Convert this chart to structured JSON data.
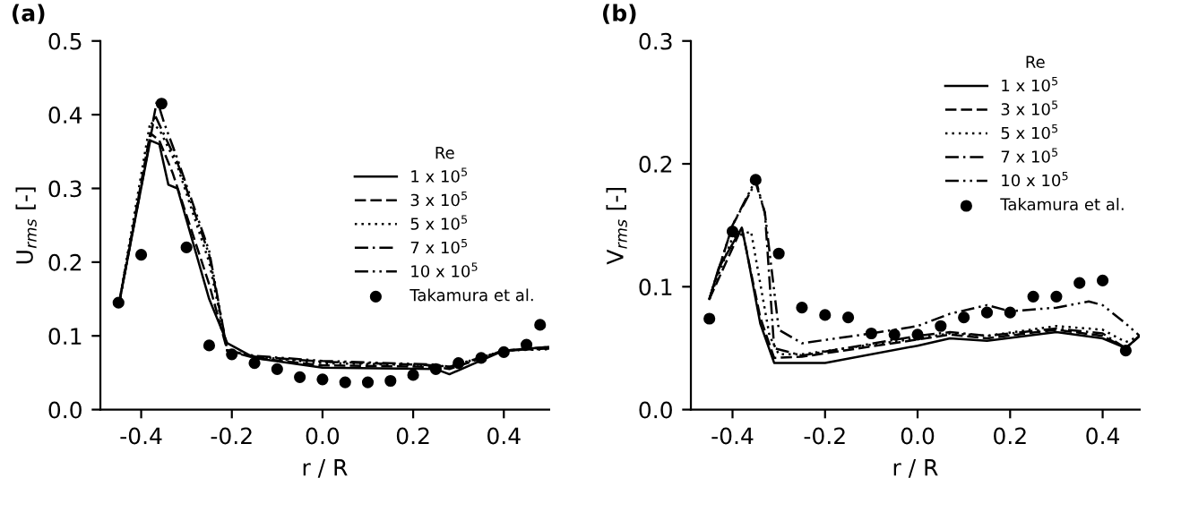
{
  "chart_data": [
    {
      "type": "line",
      "title": "(a)",
      "xlabel": "r / R",
      "ylabel": "U$_{rms}$ [-]",
      "legend_title": "Re",
      "legend": "right",
      "grid": false,
      "xlim": [
        -0.49,
        0.5
      ],
      "xticks": [
        -0.4,
        -0.2,
        {
          "value": 0,
          "label": "0.0"
        },
        0.2,
        0.4
      ],
      "ylim": [
        0,
        0.5
      ],
      "yticks": [
        {
          "value": 0,
          "label": "0.0"
        },
        0.1,
        0.2,
        0.3,
        0.4,
        0.5
      ],
      "series": [
        {
          "name": "1 x 10$^{5}$",
          "color": "#000000",
          "line_style": "solid",
          "x": [
            -0.45,
            -0.38,
            -0.36,
            -0.34,
            -0.32,
            -0.25,
            -0.21,
            -0.15,
            0,
            0.25,
            0.28,
            0.4,
            0.5
          ],
          "values": [
            0.14,
            0.365,
            0.36,
            0.305,
            0.3,
            0.15,
            0.09,
            0.07,
            0.057,
            0.055,
            0.048,
            0.08,
            0.085
          ]
        },
        {
          "name": "3 x 10$^{5}$",
          "color": "#000000",
          "line_style": "dashed",
          "x": [
            -0.45,
            -0.38,
            -0.36,
            -0.33,
            -0.25,
            -0.21,
            -0.15,
            0,
            0.25,
            0.28,
            0.4,
            0.5
          ],
          "values": [
            0.14,
            0.375,
            0.365,
            0.32,
            0.17,
            0.08,
            0.07,
            0.06,
            0.058,
            0.055,
            0.08,
            0.085
          ]
        },
        {
          "name": "5 x 10$^{5}$",
          "color": "#000000",
          "line_style": "dotted",
          "x": [
            -0.45,
            -0.38,
            -0.36,
            -0.32,
            -0.25,
            -0.21,
            -0.15,
            0,
            0.25,
            0.28,
            0.4,
            0.5
          ],
          "values": [
            0.14,
            0.39,
            0.38,
            0.33,
            0.2,
            0.08,
            0.072,
            0.063,
            0.06,
            0.057,
            0.08,
            0.082
          ]
        },
        {
          "name": "7 x 10$^{5}$",
          "color": "#000000",
          "line_style": "dashdot",
          "x": [
            -0.45,
            -0.37,
            -0.355,
            -0.32,
            -0.25,
            -0.21,
            -0.15,
            0,
            0.25,
            0.28,
            0.4,
            0.5
          ],
          "values": [
            0.14,
            0.4,
            0.38,
            0.335,
            0.21,
            0.08,
            0.072,
            0.065,
            0.06,
            0.058,
            0.08,
            0.083
          ]
        },
        {
          "name": "10 x 10$^{5}$",
          "color": "#000000",
          "line_style": "dashdotdot",
          "x": [
            -0.45,
            -0.365,
            -0.35,
            -0.32,
            -0.25,
            -0.21,
            -0.15,
            0,
            0.25,
            0.28,
            0.4,
            0.5
          ],
          "values": [
            0.14,
            0.42,
            0.39,
            0.34,
            0.215,
            0.08,
            0.073,
            0.066,
            0.061,
            0.058,
            0.08,
            0.083
          ]
        },
        {
          "name": "Takamura et al.",
          "type": "scatter",
          "marker": "circle",
          "color": "#000000",
          "x": [
            -0.45,
            -0.4,
            -0.355,
            -0.3,
            -0.25,
            -0.2,
            -0.15,
            -0.1,
            -0.05,
            0.0,
            0.05,
            0.1,
            0.15,
            0.2,
            0.25,
            0.3,
            0.35,
            0.4,
            0.45,
            0.48
          ],
          "values": [
            0.145,
            0.21,
            0.415,
            0.22,
            0.087,
            0.075,
            0.063,
            0.055,
            0.044,
            0.041,
            0.037,
            0.037,
            0.039,
            0.047,
            0.055,
            0.063,
            0.07,
            0.078,
            0.088,
            0.115
          ]
        }
      ]
    },
    {
      "type": "line",
      "title": "(b)",
      "xlabel": "r / R",
      "ylabel": "V$_{rms}$ [-]",
      "legend_title": "Re",
      "legend": "top right",
      "grid": false,
      "xlim": [
        -0.49,
        0.48
      ],
      "xticks": [
        -0.4,
        -0.2,
        {
          "value": 0,
          "label": "0.0"
        },
        0.2,
        0.4
      ],
      "ylim": [
        0,
        0.3
      ],
      "yticks": [
        {
          "value": 0,
          "label": "0.0"
        },
        0.1,
        0.2,
        0.3
      ],
      "series": [
        {
          "name": "1 x 10$^{5}$",
          "color": "#000000",
          "line_style": "solid",
          "x": [
            -0.45,
            -0.43,
            -0.38,
            -0.37,
            -0.34,
            -0.31,
            -0.2,
            0,
            0.07,
            0.15,
            0.3,
            0.4,
            0.45,
            0.48
          ],
          "values": [
            0.09,
            0.115,
            0.148,
            0.13,
            0.07,
            0.038,
            0.038,
            0.052,
            0.058,
            0.056,
            0.063,
            0.058,
            0.05,
            0.06
          ]
        },
        {
          "name": "3 x 10$^{5}$",
          "color": "#000000",
          "line_style": "dashed",
          "x": [
            -0.45,
            -0.38,
            -0.34,
            -0.31,
            -0.25,
            0,
            0.07,
            0.15,
            0.3,
            0.4,
            0.45,
            0.48
          ],
          "values": [
            0.09,
            0.148,
            0.075,
            0.042,
            0.043,
            0.057,
            0.061,
            0.058,
            0.065,
            0.06,
            0.05,
            0.06
          ]
        },
        {
          "name": "5 x 10$^{5}$",
          "color": "#000000",
          "line_style": "dotted",
          "x": [
            -0.45,
            -0.4,
            -0.36,
            -0.32,
            -0.3,
            -0.25,
            0,
            0.07,
            0.15,
            0.3,
            0.4,
            0.45,
            0.48
          ],
          "values": [
            0.09,
            0.14,
            0.145,
            0.06,
            0.045,
            0.045,
            0.058,
            0.062,
            0.06,
            0.068,
            0.065,
            0.055,
            0.06
          ]
        },
        {
          "name": "7 x 10$^{5}$",
          "color": "#000000",
          "line_style": "dashdot",
          "x": [
            -0.45,
            -0.4,
            -0.35,
            -0.33,
            -0.31,
            -0.25,
            0,
            0.07,
            0.15,
            0.3,
            0.4,
            0.45,
            0.48
          ],
          "values": [
            0.09,
            0.15,
            0.185,
            0.16,
            0.05,
            0.044,
            0.06,
            0.063,
            0.06,
            0.066,
            0.062,
            0.05,
            0.06
          ]
        },
        {
          "name": "10 x 10$^{5}$",
          "color": "#000000",
          "line_style": "dashdotdot",
          "x": [
            -0.45,
            -0.4,
            -0.35,
            -0.33,
            -0.3,
            -0.25,
            -0.1,
            0,
            0.07,
            0.15,
            0.2,
            0.3,
            0.37,
            0.4,
            0.45,
            0.48
          ],
          "values": [
            0.09,
            0.15,
            0.187,
            0.16,
            0.065,
            0.054,
            0.062,
            0.068,
            0.078,
            0.085,
            0.08,
            0.083,
            0.088,
            0.085,
            0.07,
            0.06
          ]
        },
        {
          "name": "Takamura et al.",
          "type": "scatter",
          "marker": "circle",
          "color": "#000000",
          "x": [
            -0.45,
            -0.4,
            -0.35,
            -0.3,
            -0.25,
            -0.2,
            -0.15,
            -0.1,
            -0.05,
            0.0,
            0.05,
            0.1,
            0.15,
            0.2,
            0.25,
            0.3,
            0.35,
            0.4,
            0.45
          ],
          "values": [
            0.074,
            0.145,
            0.187,
            0.127,
            0.083,
            0.077,
            0.075,
            0.062,
            0.061,
            0.061,
            0.068,
            0.075,
            0.079,
            0.079,
            0.092,
            0.092,
            0.103,
            0.105,
            0.048
          ]
        }
      ]
    }
  ]
}
